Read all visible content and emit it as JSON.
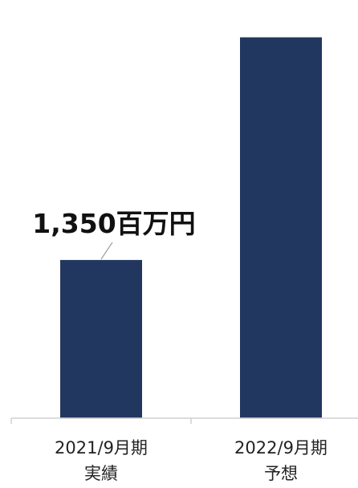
{
  "chart_data": {
    "type": "bar",
    "categories": [
      [
        "2021/9月期",
        "実績"
      ],
      [
        "2022/9月期",
        "予想"
      ]
    ],
    "values": [
      1350,
      3250
    ],
    "data_labels": [
      "1,350百万円",
      ""
    ],
    "bar_color": "#22375f",
    "axis_color": "#d0d0d0",
    "leader_color": "#999999",
    "title": "",
    "xlabel": "",
    "ylabel": "",
    "ylim": [
      0,
      3500
    ],
    "grid": false,
    "legend": "none"
  }
}
